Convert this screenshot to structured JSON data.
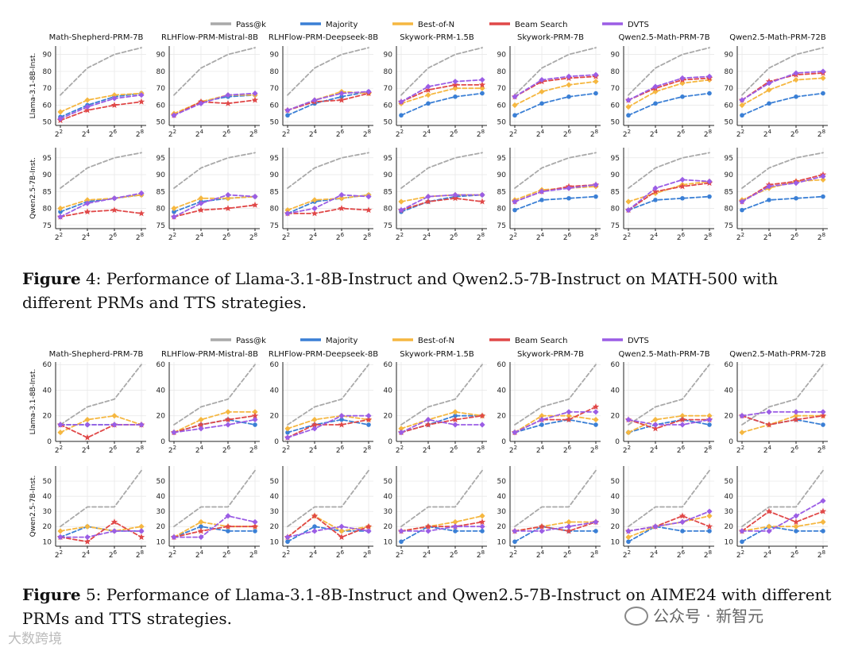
{
  "legend": [
    {
      "name": "Pass@k",
      "color": "#a9a9a9"
    },
    {
      "name": "Majority",
      "color": "#3a7fd5"
    },
    {
      "name": "Best-of-N",
      "color": "#f5b740"
    },
    {
      "name": "Beam Search",
      "color": "#e04848"
    },
    {
      "name": "DVTS",
      "color": "#9b5de5"
    }
  ],
  "prms": [
    "Math-Shepherd-PRM-7B",
    "RLHFlow-PRM-Mistral-8B",
    "RLHFlow-PRM-Deepseek-8B",
    "Skywork-PRM-1.5B",
    "Skywork-PRM-7B",
    "Qwen2.5-Math-PRM-7B",
    "Qwen2.5-Math-PRM-72B"
  ],
  "x_ticks": [
    "2",
    "4",
    "6",
    "8"
  ],
  "x_tick_base": "2",
  "captions": {
    "fig4_label": "Figure",
    "fig4_text": " 4: Performance of Llama-3.1-8B-Instruct and Qwen2.5-7B-Instruct on MATH-500 with different PRMs and TTS strategies.",
    "fig5_label": "Figure",
    "fig5_text": " 5: Performance of Llama-3.1-8B-Instruct and Qwen2.5-7B-Instruct on AIME24 with different PRMs and TTS strategies."
  },
  "watermark_right": "公众号 · 新智元",
  "watermark_left": "大数跨境",
  "chart_data": [
    {
      "type": "line",
      "figure": "Figure 4",
      "row_label": "Llama-3.1-8B-Inst.",
      "ylim": [
        48,
        95
      ],
      "yticks": [
        50,
        60,
        70,
        80,
        90
      ],
      "panels": [
        {
          "series": [
            [
              66,
              82,
              90,
              94
            ],
            [
              53,
              60,
              65,
              67
            ],
            [
              56,
              63,
              66,
              67
            ],
            [
              51,
              57,
              60,
              62
            ],
            [
              52,
              59,
              64,
              66
            ]
          ]
        },
        {
          "series": [
            [
              66,
              82,
              90,
              94
            ],
            [
              54,
              62,
              65,
              66
            ],
            [
              55,
              62,
              66,
              66
            ],
            [
              54,
              62,
              61,
              63
            ],
            [
              54,
              61,
              66,
              67
            ]
          ]
        },
        {
          "series": [
            [
              66,
              82,
              90,
              94
            ],
            [
              54,
              61,
              65,
              68
            ],
            [
              57,
              63,
              68,
              67
            ],
            [
              57,
              62,
              63,
              67
            ],
            [
              57,
              63,
              67,
              68
            ]
          ]
        },
        {
          "series": [
            [
              66,
              82,
              90,
              94
            ],
            [
              54,
              61,
              65,
              67
            ],
            [
              61,
              66,
              70,
              70
            ],
            [
              62,
              69,
              72,
              72
            ],
            [
              62,
              71,
              74,
              75
            ]
          ]
        },
        {
          "series": [
            [
              66,
              82,
              90,
              94
            ],
            [
              54,
              61,
              65,
              67
            ],
            [
              60,
              68,
              72,
              74
            ],
            [
              65,
              74,
              76,
              77
            ],
            [
              65,
              75,
              77,
              78
            ]
          ]
        },
        {
          "series": [
            [
              66,
              82,
              90,
              94
            ],
            [
              54,
              61,
              65,
              67
            ],
            [
              59,
              68,
              73,
              75
            ],
            [
              63,
              70,
              75,
              76
            ],
            [
              63,
              71,
              76,
              77
            ]
          ]
        },
        {
          "series": [
            [
              66,
              82,
              90,
              94
            ],
            [
              54,
              61,
              65,
              67
            ],
            [
              60,
              69,
              75,
              76
            ],
            [
              63,
              74,
              78,
              79
            ],
            [
              63,
              73,
              79,
              80
            ]
          ]
        }
      ]
    },
    {
      "type": "line",
      "figure": "Figure 4",
      "row_label": "Qwen2.5-7B-Inst.",
      "ylim": [
        74,
        98
      ],
      "yticks": [
        75,
        80,
        85,
        90,
        95
      ],
      "panels": [
        {
          "series": [
            [
              86,
              92,
              95,
              96.5
            ],
            [
              79,
              82,
              83,
              84
            ],
            [
              80,
              82.5,
              83,
              84
            ],
            [
              77.5,
              79,
              79.5,
              78.5
            ],
            [
              77.5,
              81.5,
              83,
              84.5
            ]
          ]
        },
        {
          "series": [
            [
              86,
              92,
              95,
              96.5
            ],
            [
              79,
              82,
              83,
              83.5
            ],
            [
              80,
              83,
              83,
              83.5
            ],
            [
              77.5,
              79.5,
              80,
              81
            ],
            [
              77.5,
              81.5,
              84,
              83.5
            ]
          ]
        },
        {
          "series": [
            [
              86,
              92,
              95,
              96.5
            ],
            [
              78.5,
              82,
              83,
              84
            ],
            [
              79.5,
              82.5,
              83,
              84
            ],
            [
              78.5,
              78.5,
              80,
              79.5
            ],
            [
              78.5,
              80,
              84,
              83.5
            ]
          ]
        },
        {
          "series": [
            [
              86,
              92,
              95,
              96.5
            ],
            [
              79,
              82,
              83.5,
              84
            ],
            [
              82,
              83.5,
              84,
              84
            ],
            [
              79.5,
              82,
              83,
              82
            ],
            [
              79.5,
              83.5,
              84,
              84
            ]
          ]
        },
        {
          "series": [
            [
              86,
              92,
              95,
              96.5
            ],
            [
              79.5,
              82.5,
              83,
              83.5
            ],
            [
              82.5,
              85.5,
              86,
              86.5
            ],
            [
              82,
              85,
              86.5,
              87
            ],
            [
              82,
              85,
              86,
              87
            ]
          ]
        },
        {
          "series": [
            [
              86,
              92,
              95,
              96.5
            ],
            [
              79.5,
              82.5,
              83,
              83.5
            ],
            [
              82,
              84.5,
              87,
              88
            ],
            [
              79.5,
              85,
              86.5,
              87.5
            ],
            [
              79.5,
              86,
              88.5,
              88
            ]
          ]
        },
        {
          "series": [
            [
              86,
              92,
              95,
              96.5
            ],
            [
              79.5,
              82.5,
              83,
              83.5
            ],
            [
              82.5,
              86,
              88,
              88.5
            ],
            [
              82,
              87,
              88,
              90
            ],
            [
              82,
              86.5,
              87.5,
              89.5
            ]
          ]
        }
      ]
    },
    {
      "type": "line",
      "figure": "Figure 5",
      "row_label": "Llama-3.1-8B-Inst.",
      "ylim": [
        0,
        62
      ],
      "yticks": [
        0,
        20,
        40,
        60
      ],
      "panels": [
        {
          "series": [
            [
              13,
              27,
              33,
              60
            ],
            [
              13,
              13,
              13,
              13
            ],
            [
              7,
              17,
              20,
              13
            ],
            [
              13,
              3,
              13,
              13
            ],
            [
              13,
              13,
              13,
              13
            ]
          ]
        },
        {
          "series": [
            [
              13,
              27,
              33,
              60
            ],
            [
              7,
              13,
              17,
              13
            ],
            [
              7,
              17,
              23,
              23
            ],
            [
              7,
              13,
              17,
              20
            ],
            [
              7,
              10,
              13,
              17
            ]
          ]
        },
        {
          "series": [
            [
              13,
              27,
              33,
              60
            ],
            [
              7,
              13,
              17,
              13
            ],
            [
              10,
              17,
              20,
              17
            ],
            [
              3,
              13,
              13,
              17
            ],
            [
              3,
              10,
              20,
              20
            ]
          ]
        },
        {
          "series": [
            [
              13,
              27,
              33,
              60
            ],
            [
              7,
              13,
              20,
              20
            ],
            [
              10,
              17,
              23,
              20
            ],
            [
              7,
              13,
              17,
              20
            ],
            [
              7,
              17,
              13,
              13
            ]
          ]
        },
        {
          "series": [
            [
              13,
              27,
              33,
              60
            ],
            [
              7,
              13,
              17,
              13
            ],
            [
              7,
              20,
              20,
              17
            ],
            [
              7,
              17,
              17,
              27
            ],
            [
              7,
              17,
              23,
              23
            ]
          ]
        },
        {
          "series": [
            [
              13,
              27,
              33,
              60
            ],
            [
              7,
              13,
              17,
              13
            ],
            [
              7,
              17,
              20,
              20
            ],
            [
              17,
              10,
              17,
              17
            ],
            [
              17,
              13,
              13,
              17
            ]
          ]
        },
        {
          "series": [
            [
              13,
              27,
              33,
              60
            ],
            [
              20,
              13,
              17,
              13
            ],
            [
              7,
              13,
              20,
              20
            ],
            [
              20,
              13,
              17,
              20
            ],
            [
              20,
              23,
              23,
              23
            ]
          ]
        }
      ]
    },
    {
      "type": "line",
      "figure": "Figure 5",
      "row_label": "Qwen2.5-7B-Inst.",
      "ylim": [
        7,
        60
      ],
      "yticks": [
        10,
        20,
        30,
        40,
        50
      ],
      "panels": [
        {
          "series": [
            [
              20,
              33,
              33,
              57
            ],
            [
              13,
              20,
              17,
              17
            ],
            [
              17,
              20,
              17,
              20
            ],
            [
              13,
              10,
              23,
              13
            ],
            [
              13,
              13,
              17,
              17
            ]
          ]
        },
        {
          "series": [
            [
              20,
              33,
              33,
              57
            ],
            [
              13,
              20,
              17,
              17
            ],
            [
              13,
              23,
              20,
              20
            ],
            [
              13,
              17,
              20,
              20
            ],
            [
              13,
              13,
              27,
              23
            ]
          ]
        },
        {
          "series": [
            [
              20,
              33,
              33,
              57
            ],
            [
              10,
              20,
              17,
              17
            ],
            [
              13,
              27,
              17,
              20
            ],
            [
              13,
              27,
              13,
              20
            ],
            [
              13,
              17,
              20,
              17
            ]
          ]
        },
        {
          "series": [
            [
              20,
              33,
              33,
              57
            ],
            [
              10,
              20,
              17,
              17
            ],
            [
              17,
              20,
              23,
              27
            ],
            [
              17,
              20,
              20,
              23
            ],
            [
              17,
              17,
              20,
              20
            ]
          ]
        },
        {
          "series": [
            [
              20,
              33,
              33,
              57
            ],
            [
              10,
              20,
              17,
              17
            ],
            [
              17,
              20,
              23,
              23
            ],
            [
              17,
              20,
              17,
              23
            ],
            [
              17,
              17,
              20,
              23
            ]
          ]
        },
        {
          "series": [
            [
              20,
              33,
              33,
              57
            ],
            [
              10,
              20,
              17,
              17
            ],
            [
              13,
              20,
              23,
              27
            ],
            [
              17,
              20,
              27,
              20
            ],
            [
              17,
              20,
              23,
              30
            ]
          ]
        },
        {
          "series": [
            [
              20,
              33,
              33,
              57
            ],
            [
              10,
              20,
              17,
              17
            ],
            [
              17,
              20,
              20,
              23
            ],
            [
              17,
              30,
              23,
              30
            ],
            [
              17,
              17,
              27,
              37
            ]
          ]
        }
      ]
    }
  ]
}
